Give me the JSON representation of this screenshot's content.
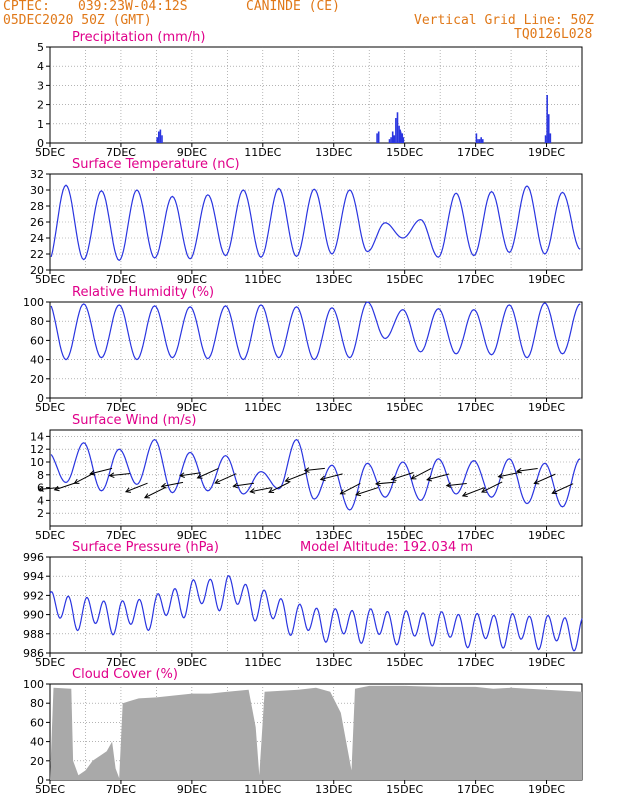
{
  "header": {
    "source": "CPTEC:",
    "coords": "039:23W-04:12S",
    "station": "CANINDE (CE)",
    "date": "05DEC2020 50Z (GMT)",
    "grid_note": "Vertical Grid Line: 50Z",
    "code": "TQ0126L028",
    "model_altitude": "Model Altitude: 192.034 m"
  },
  "colors": {
    "series": "#2a35e0",
    "title": "#e0008a",
    "header": "#e07818",
    "cloud": "#a9a9a9",
    "grid": "#888888"
  },
  "chart_data": [
    {
      "id": "precipitation",
      "type": "bar",
      "title": "Precipitation (mm/h)",
      "ylim": [
        0,
        5
      ],
      "yticks": [
        0,
        1,
        2,
        3,
        4,
        5
      ],
      "xticks": [
        "5DEC",
        "7DEC",
        "9DEC",
        "11DEC",
        "13DEC",
        "15DEC",
        "17DEC",
        "19DEC"
      ],
      "xlim_days": [
        5,
        20
      ],
      "events": [
        {
          "day": 8.0,
          "values": [
            0.3,
            0.6,
            0.7,
            0.4
          ]
        },
        {
          "day": 14.55,
          "values": [
            0.2,
            0.3,
            0.6,
            0.4,
            1.3,
            1.6,
            0.9,
            0.6,
            0.5
          ]
        },
        {
          "day": 14.2,
          "values": [
            0.5,
            0.6
          ]
        },
        {
          "day": 14.85,
          "values": [
            0.7,
            0.5,
            0.3
          ]
        },
        {
          "day": 17.0,
          "values": [
            0.5,
            0.2,
            0.2,
            0.3,
            0.2
          ]
        },
        {
          "day": 18.95,
          "values": [
            0.4,
            2.5,
            1.5,
            0.5
          ]
        }
      ]
    },
    {
      "id": "temperature",
      "type": "line",
      "title": "Surface Temperature (nC)",
      "ylim": [
        20,
        32
      ],
      "yticks": [
        20,
        22,
        24,
        26,
        28,
        30,
        32
      ],
      "xticks": [
        "5DEC",
        "7DEC",
        "9DEC",
        "11DEC",
        "13DEC",
        "15DEC",
        "17DEC",
        "19DEC"
      ],
      "xlim_days": [
        5,
        20
      ],
      "mins": [
        21.0,
        21.3,
        21.2,
        21.5,
        21.4,
        21.8,
        21.6,
        21.7,
        22.0,
        22.3,
        24.0,
        21.6,
        21.8,
        22.2,
        22.0,
        22.6
      ],
      "maxs": [
        30.6,
        29.9,
        30.0,
        29.2,
        29.4,
        30.0,
        30.2,
        30.1,
        30.0,
        25.9,
        26.3,
        29.6,
        29.8,
        30.5,
        29.7
      ]
    },
    {
      "id": "humidity",
      "type": "line",
      "title": "Relative Humidity (%)",
      "ylim": [
        0,
        100
      ],
      "yticks": [
        0,
        20,
        40,
        60,
        80,
        100
      ],
      "xticks": [
        "5DEC",
        "7DEC",
        "9DEC",
        "11DEC",
        "13DEC",
        "15DEC",
        "17DEC",
        "19DEC"
      ],
      "xlim_days": [
        5,
        20
      ],
      "maxs": [
        100,
        98,
        97,
        96,
        95,
        96,
        97,
        95,
        94,
        100,
        92,
        93,
        92,
        97,
        99,
        98
      ],
      "mins": [
        40,
        42,
        40,
        42,
        41,
        40,
        42,
        40,
        42,
        62,
        48,
        46,
        45,
        42,
        46
      ]
    },
    {
      "id": "wind",
      "type": "line",
      "title": "Surface Wind (m/s)",
      "ylim": [
        0,
        15
      ],
      "yticks": [
        2,
        4,
        6,
        8,
        10,
        12,
        14
      ],
      "xticks": [
        "5DEC",
        "7DEC",
        "9DEC",
        "11DEC",
        "13DEC",
        "15DEC",
        "17DEC",
        "19DEC"
      ],
      "xlim_days": [
        5,
        20
      ],
      "maxs": [
        11.5,
        13.0,
        12.0,
        13.5,
        11.5,
        11.0,
        8.5,
        13.5,
        9.5,
        9.8,
        10.0,
        10.5,
        10.2,
        10.5,
        9.8,
        10.5
      ],
      "mins": [
        6.8,
        5.5,
        6.5,
        5.2,
        5.5,
        5.0,
        5.8,
        4.2,
        2.5,
        4.5,
        4.0,
        5.0,
        4.5,
        3.5,
        3.0
      ]
    },
    {
      "id": "pressure",
      "type": "line",
      "title": "Surface Pressure (hPa)",
      "ylim": [
        986,
        996
      ],
      "yticks": [
        986,
        988,
        990,
        992,
        994,
        996
      ],
      "xticks": [
        "5DEC",
        "7DEC",
        "9DEC",
        "11DEC",
        "13DEC",
        "15DEC",
        "17DEC",
        "19DEC"
      ],
      "xlim_days": [
        5,
        20
      ],
      "base": [
        990.8,
        990.2,
        989.8,
        990.5,
        992.0,
        992.5,
        991.0,
        989.5,
        989.0,
        989.0,
        988.8,
        988.7,
        988.5,
        988.5,
        988.3,
        988.2
      ],
      "amplitude": 1.5
    },
    {
      "id": "cloud",
      "type": "area",
      "title": "Cloud Cover (%)",
      "ylim": [
        0,
        100
      ],
      "yticks": [
        0,
        20,
        40,
        60,
        80,
        100
      ],
      "xticks": [
        "5DEC",
        "7DEC",
        "9DEC",
        "11DEC",
        "13DEC",
        "15DEC",
        "17DEC",
        "19DEC"
      ],
      "xlim_days": [
        5,
        20
      ],
      "profile": [
        [
          5.0,
          0
        ],
        [
          5.1,
          96
        ],
        [
          5.6,
          95
        ],
        [
          5.65,
          20
        ],
        [
          5.8,
          5
        ],
        [
          6.0,
          10
        ],
        [
          6.2,
          20
        ],
        [
          6.4,
          25
        ],
        [
          6.6,
          30
        ],
        [
          6.75,
          40
        ],
        [
          6.85,
          12
        ],
        [
          6.95,
          2
        ],
        [
          7.05,
          80
        ],
        [
          7.5,
          85
        ],
        [
          8.0,
          86
        ],
        [
          8.5,
          88
        ],
        [
          9.0,
          90
        ],
        [
          9.5,
          90
        ],
        [
          10.0,
          92
        ],
        [
          10.6,
          94
        ],
        [
          10.8,
          55
        ],
        [
          10.9,
          5
        ],
        [
          11.05,
          92
        ],
        [
          12.0,
          94
        ],
        [
          12.5,
          96
        ],
        [
          12.9,
          92
        ],
        [
          13.2,
          70
        ],
        [
          13.5,
          10
        ],
        [
          13.6,
          95
        ],
        [
          14.0,
          98
        ],
        [
          15.0,
          98
        ],
        [
          16.0,
          97
        ],
        [
          17.0,
          97
        ],
        [
          17.5,
          95
        ],
        [
          18.0,
          96
        ],
        [
          18.5,
          95
        ],
        [
          19.0,
          94
        ],
        [
          20.0,
          92
        ]
      ]
    }
  ]
}
